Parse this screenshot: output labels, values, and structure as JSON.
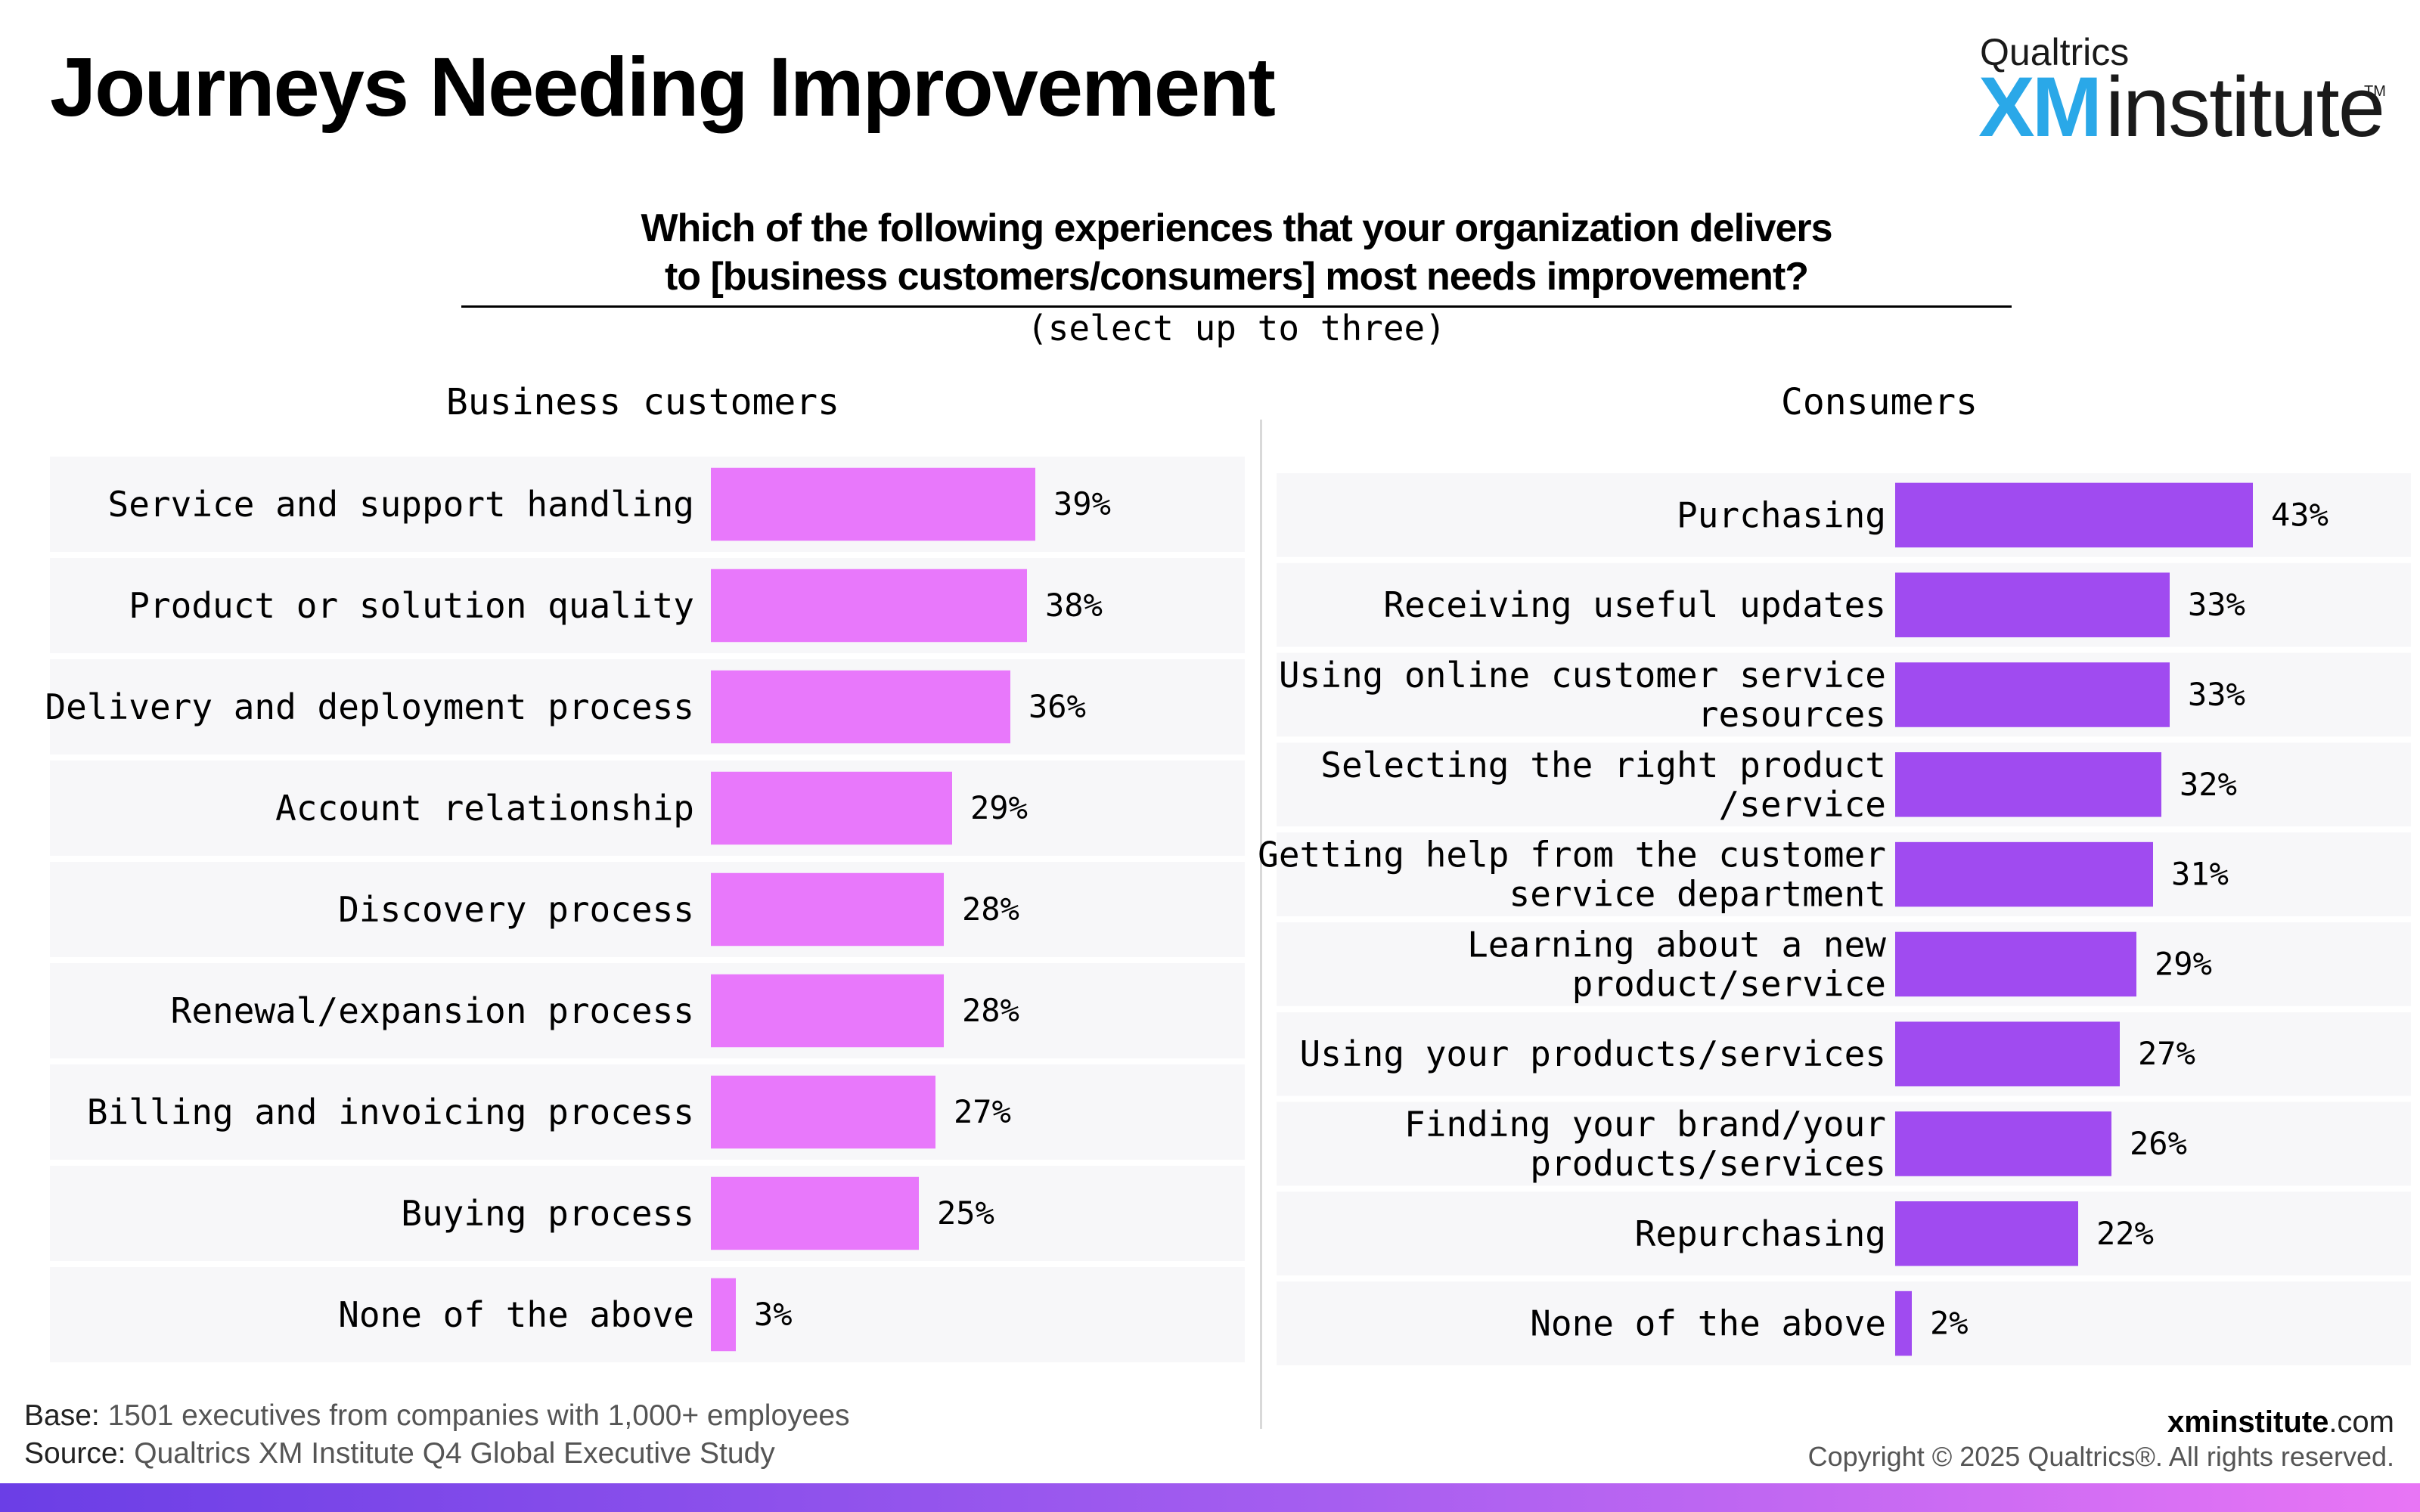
{
  "title": "Journeys Needing Improvement",
  "logo": {
    "top": "Qualtrics",
    "xm": "XM",
    "name": "institute",
    "tm": "TM"
  },
  "question": {
    "line1": "Which of the following experiences that your organization delivers",
    "line2": "to [business customers/consumers] most needs improvement?",
    "subtitle": "(select up to three)"
  },
  "colors": {
    "business": "#e878fb",
    "consumers": "#a04bf0",
    "band": "#f7f7f9"
  },
  "chart_data": [
    {
      "type": "bar",
      "orientation": "horizontal",
      "title": "Business customers",
      "categories": [
        [
          "Service and support handling"
        ],
        [
          "Product or solution quality"
        ],
        [
          "Delivery and deployment process"
        ],
        [
          "Account relationship"
        ],
        [
          "Discovery process"
        ],
        [
          "Renewal/expansion process"
        ],
        [
          "Billing and invoicing process"
        ],
        [
          "Buying process"
        ],
        [
          "None of the above"
        ]
      ],
      "values": [
        39,
        38,
        36,
        29,
        28,
        28,
        27,
        25,
        3
      ],
      "value_labels": [
        "39%",
        "38%",
        "36%",
        "29%",
        "28%",
        "28%",
        "27%",
        "25%",
        "3%"
      ],
      "unit": "%",
      "grid": false
    },
    {
      "type": "bar",
      "orientation": "horizontal",
      "title": "Consumers",
      "categories": [
        [
          "Purchasing"
        ],
        [
          "Receiving useful updates"
        ],
        [
          "Using online customer service",
          "resources"
        ],
        [
          "Selecting the right product",
          "/service"
        ],
        [
          "Getting help from the customer",
          "service department"
        ],
        [
          "Learning about a new",
          "product/service"
        ],
        [
          "Using your products/services"
        ],
        [
          "Finding your brand/your",
          "products/services"
        ],
        [
          "Repurchasing"
        ],
        [
          "None of the above"
        ]
      ],
      "values": [
        43,
        33,
        33,
        32,
        31,
        29,
        27,
        26,
        22,
        2
      ],
      "value_labels": [
        "43%",
        "33%",
        "33%",
        "32%",
        "31%",
        "29%",
        "27%",
        "26%",
        "22%",
        "2%"
      ],
      "unit": "%",
      "grid": false
    }
  ],
  "footer": {
    "base_label": "Base:",
    "base_text": "1501 executives from companies with 1,000+ employees",
    "source_label": "Source:",
    "source_text": "Qualtrics XM Institute Q4 Global Executive Study",
    "site_bold": "xminstitute",
    "site_rest": ".com",
    "copyright": "Copyright © 2025 Qualtrics®. All rights reserved."
  }
}
